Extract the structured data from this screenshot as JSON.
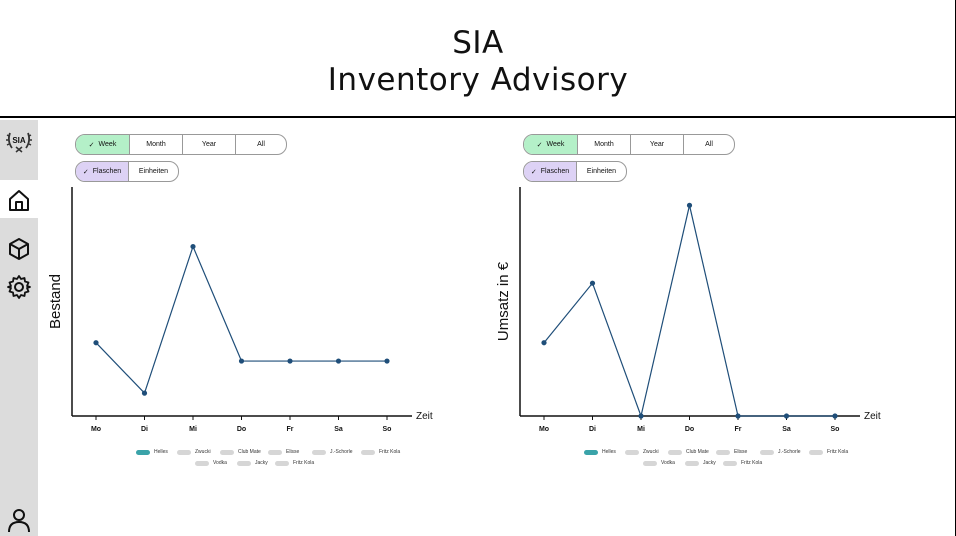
{
  "app": {
    "title_line1": "SIA",
    "title_line2": "Inventory Advisory"
  },
  "sidebar": {
    "items": [
      {
        "icon": "logo-icon"
      },
      {
        "icon": "home-icon",
        "active": true
      },
      {
        "icon": "box-icon"
      },
      {
        "icon": "gear-icon"
      },
      {
        "icon": "user-icon"
      }
    ],
    "logo_text": "SIA"
  },
  "period_filter": {
    "options": [
      "Week",
      "Month",
      "Year",
      "All"
    ],
    "selected": "Week"
  },
  "unit_filter": {
    "options": [
      "Flaschen",
      "Einheiten"
    ],
    "selected": "Flaschen"
  },
  "legend": {
    "row1": [
      "Helles",
      "Zwucki",
      "Club Mate",
      "Elisse",
      "J.-Schorle",
      "Fritz Kola"
    ],
    "row2": [
      "Vodka",
      "Jacky",
      "Fritz Kola"
    ],
    "active": "Helles"
  },
  "chart_data": [
    {
      "type": "line",
      "ylabel": "Bestand",
      "xlabel": "Zeit",
      "categories": [
        "Mo",
        "Di",
        "Mi",
        "Do",
        "Fr",
        "Sa",
        "So"
      ],
      "series": [
        {
          "name": "Helles",
          "values": [
            0.32,
            0.1,
            0.74,
            0.24,
            0.24,
            0.24,
            0.24
          ]
        }
      ],
      "ylim": [
        0,
        1
      ],
      "color": "#1f4e79"
    },
    {
      "type": "line",
      "ylabel": "Umsatz in €",
      "xlabel": "Zeit",
      "categories": [
        "Mo",
        "Di",
        "Mi",
        "Do",
        "Fr",
        "Sa",
        "So"
      ],
      "series": [
        {
          "name": "Helles",
          "values": [
            0.32,
            0.58,
            0.0,
            0.92,
            0.0,
            0.0,
            0.0
          ]
        }
      ],
      "ylim": [
        0,
        1
      ],
      "color": "#1f4e79"
    }
  ]
}
